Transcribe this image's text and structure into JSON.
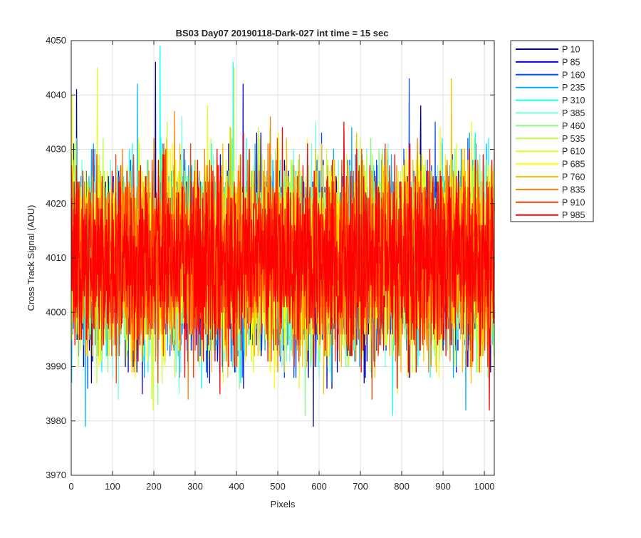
{
  "chart_data": {
    "type": "line",
    "title": "BS03 Day07 20190118-Dark-027 int time = 15 sec",
    "xlabel": "Pixels",
    "ylabel": "Cross Track Signal (ADU)",
    "xlim": [
      0,
      1024
    ],
    "ylim": [
      3970,
      4050
    ],
    "x_ticks": [
      0,
      100,
      200,
      300,
      400,
      500,
      600,
      700,
      800,
      900,
      1000
    ],
    "y_ticks": [
      3970,
      3980,
      3990,
      4000,
      4010,
      4020,
      4030,
      4040,
      4050
    ],
    "grid": true,
    "legend_position": "outside-top-right",
    "x": {
      "start": 1,
      "end": 1024,
      "step": 1
    },
    "series": [
      {
        "name": "P 10",
        "color": "#00008F",
        "mean": 4010,
        "spread": 8.6,
        "extremes": [
          [
            204,
            4046
          ],
          [
            13,
            4041
          ],
          [
            586,
            3979
          ],
          [
            30,
            3990
          ]
        ]
      },
      {
        "name": "P 85",
        "color": "#0000EF",
        "mean": 4010,
        "spread": 8.6,
        "extremes": [
          [
            172,
            3985
          ],
          [
            416,
            4042
          ],
          [
            960,
            3990
          ]
        ]
      },
      {
        "name": "P 160",
        "color": "#004FFF",
        "mean": 4010,
        "spread": 8.6,
        "extremes": [
          [
            818,
            4043
          ],
          [
            40,
            3986
          ]
        ]
      },
      {
        "name": "P 235",
        "color": "#00AFFF",
        "mean": 4010,
        "spread": 8.6,
        "extremes": [
          [
            34,
            3979
          ],
          [
            160,
            4042
          ],
          [
            955,
            3982
          ]
        ]
      },
      {
        "name": "P 310",
        "color": "#0FFFFF",
        "mean": 4010,
        "spread": 8.6,
        "extremes": [
          [
            215,
            4049
          ],
          [
            392,
            4046
          ],
          [
            778,
            3981
          ]
        ]
      },
      {
        "name": "P 385",
        "color": "#6FFFDF",
        "mean": 4010,
        "spread": 8.6,
        "extremes": [
          [
            100,
            3988
          ],
          [
            600,
            3988
          ]
        ]
      },
      {
        "name": "P 460",
        "color": "#7FFF7F",
        "mean": 4010,
        "spread": 8.6,
        "extremes": [
          [
            566,
            3981
          ],
          [
            210,
            3983
          ]
        ]
      },
      {
        "name": "P 535",
        "color": "#BFFF3F",
        "mean": 4010,
        "spread": 8.6,
        "extremes": [
          [
            394,
            4045
          ],
          [
            62,
            3987
          ]
        ]
      },
      {
        "name": "P 610",
        "color": "#DFFF1F",
        "mean": 4010,
        "spread": 8.6,
        "extremes": [
          [
            63,
            4045
          ],
          [
            198,
            3982
          ],
          [
            330,
            4038
          ]
        ]
      },
      {
        "name": "P 685",
        "color": "#FFFF00",
        "mean": 4010,
        "spread": 8.6,
        "extremes": [
          [
            3,
            4040
          ],
          [
            890,
            3988
          ]
        ]
      },
      {
        "name": "P 760",
        "color": "#FFBF00",
        "mean": 4010,
        "spread": 8.6,
        "extremes": [
          [
            920,
            4043
          ],
          [
            560,
            3990
          ]
        ]
      },
      {
        "name": "P 835",
        "color": "#FF7F00",
        "mean": 4010,
        "spread": 8.6,
        "extremes": [
          [
            250,
            4037
          ],
          [
            820,
            3988
          ]
        ]
      },
      {
        "name": "P 910",
        "color": "#FF3F00",
        "mean": 4010,
        "spread": 8.6,
        "extremes": [
          [
            728,
            3984
          ],
          [
            1008,
            3990
          ]
        ]
      },
      {
        "name": "P 985",
        "color": "#FF0000",
        "mean": 4010,
        "spread": 8.6,
        "extremes": [
          [
            360,
            3985
          ],
          [
            1012,
            3982
          ],
          [
            660,
            4035
          ]
        ]
      }
    ]
  }
}
